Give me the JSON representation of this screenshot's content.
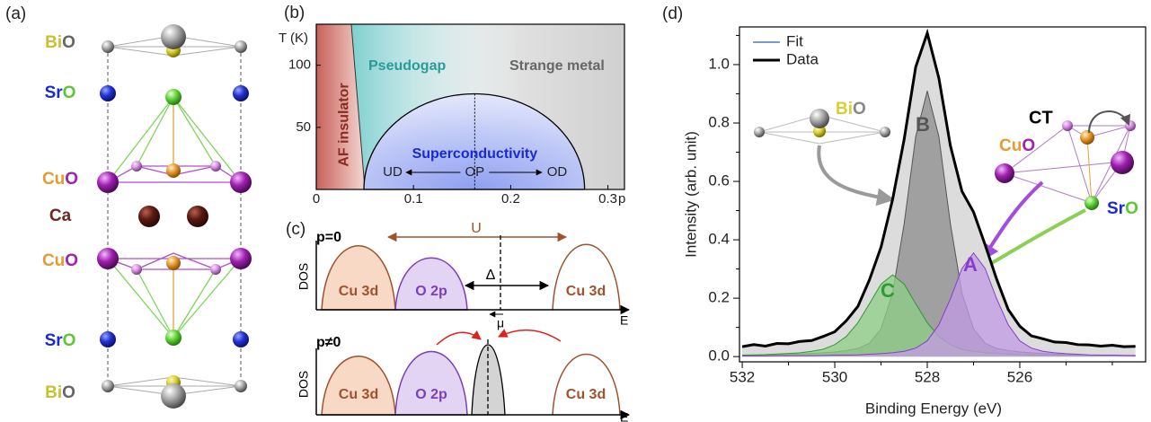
{
  "panels": {
    "a": {
      "label": "(a)",
      "layers": [
        {
          "cation": "Bi",
          "anion": "O"
        },
        {
          "cation": "Sr",
          "anion": "O"
        },
        {
          "cation": "Cu",
          "anion": "O"
        },
        {
          "cation": "Ca"
        },
        {
          "cation": "Cu",
          "anion": "O"
        },
        {
          "cation": "Sr",
          "anion": "O"
        },
        {
          "cation": "Bi",
          "anion": "O"
        }
      ]
    },
    "c": {
      "label": "(c)",
      "top": {
        "title": "p=0",
        "u": "U",
        "dos": "DOS",
        "cu_left": "Cu 3d",
        "o2p": "O 2p",
        "gap": "Δ",
        "cu_right": "Cu 3d",
        "mu": "μ",
        "e": "E"
      },
      "bottom": {
        "title": "p≠0",
        "dos": "DOS",
        "cu_left": "Cu 3d",
        "o2p": "O 2p",
        "cu_right": "Cu 3d",
        "e": "E"
      }
    }
  },
  "chart_data": [
    {
      "type": "phase_diagram",
      "label": "(b)",
      "ylabel": "T (K)",
      "xlabel": "p",
      "xlim": [
        0,
        0.317
      ],
      "ylim": [
        0,
        133
      ],
      "xticks": [
        0,
        0.1,
        0.2,
        0.3
      ],
      "yticks": [
        50,
        100
      ],
      "af_boundary": {
        "p": [
          0.036,
          0.05
        ],
        "T": [
          133,
          0
        ]
      },
      "dome": {
        "p": [
          0.049,
          0.276
        ],
        "tc_max": 77,
        "p_opt": 0.163
      },
      "regions": {
        "af": "AF insulator",
        "pseudogap": "Pseudogap",
        "strange_metal": "Strange metal",
        "sc": "Superconductivity"
      },
      "doping": {
        "ud": "UD",
        "op": "OP",
        "od": "OD"
      }
    },
    {
      "type": "line",
      "label": "(d)",
      "xlabel": "Binding Energy (eV)",
      "ylabel": "Intensity (arb. unit)",
      "xlim": [
        532.06,
        523.28
      ],
      "ylim": [
        -0.018,
        1.129
      ],
      "xticks": [
        532,
        530,
        528,
        526
      ],
      "xminorticks": [
        531,
        529,
        527,
        525,
        524
      ],
      "yticks": [
        {
          "value": 0,
          "label": "0.0"
        },
        0.2,
        0.4,
        0.6,
        0.8,
        {
          "value": 1,
          "label": "1.0"
        }
      ],
      "yminorticks": [
        0.1,
        0.3,
        0.5,
        0.7,
        0.9,
        1.1
      ],
      "legend": "upper left",
      "x": [
        532,
        531.75,
        531.5,
        531.25,
        531,
        530.75,
        530.5,
        530.25,
        530,
        529.75,
        529.5,
        529.25,
        529,
        528.75,
        528.5,
        528.25,
        528,
        527.75,
        527.5,
        527.25,
        527,
        526.75,
        526.5,
        526.25,
        526,
        525.75,
        525.5,
        525.25,
        525,
        524.75,
        524.5,
        524.25,
        524,
        523.75,
        523.5
      ],
      "series": [
        {
          "name": "Fit",
          "style": "line",
          "color": "#4a7bb7",
          "fill": "#dcdcdc",
          "values": [
            0.036,
            0.038,
            0.039,
            0.043,
            0.046,
            0.05,
            0.057,
            0.067,
            0.087,
            0.12,
            0.175,
            0.26,
            0.378,
            0.535,
            0.746,
            0.989,
            1.105,
            0.957,
            0.719,
            0.569,
            0.493,
            0.386,
            0.262,
            0.164,
            0.102,
            0.073,
            0.059,
            0.052,
            0.046,
            0.043,
            0.039,
            0.038,
            0.037,
            0.036,
            0.034
          ]
        },
        {
          "name": "B",
          "style": "area",
          "color": "#555555",
          "fill": "#8c8c8c",
          "values": [
            0.004,
            0.005,
            0.005,
            0.006,
            0.007,
            0.009,
            0.011,
            0.013,
            0.016,
            0.021,
            0.028,
            0.046,
            0.095,
            0.217,
            0.455,
            0.754,
            0.91,
            0.754,
            0.455,
            0.217,
            0.095,
            0.046,
            0.028,
            0.021,
            0.016,
            0.013,
            0.011,
            0.009,
            0.007,
            0.006,
            0.005,
            0.005,
            0.004,
            0.004,
            0.004
          ]
        },
        {
          "name": "C",
          "style": "area",
          "color": "#2f9a2f",
          "fill": "#8fcf86",
          "values": [
            0.005,
            0.006,
            0.007,
            0.009,
            0.011,
            0.013,
            0.018,
            0.025,
            0.041,
            0.069,
            0.116,
            0.181,
            0.248,
            0.28,
            0.248,
            0.181,
            0.116,
            0.069,
            0.041,
            0.025,
            0.018,
            0.013,
            0.011,
            0.009,
            0.007,
            0.006,
            0.005,
            0.005,
            0.004,
            0.004,
            0.003,
            0.003,
            0.003,
            0.003,
            0.002
          ]
        },
        {
          "name": "A",
          "style": "area",
          "color": "#8a3dc8",
          "fill": "#c39be6",
          "values": [
            0.002,
            0.002,
            0.002,
            0.003,
            0.003,
            0.003,
            0.003,
            0.004,
            0.005,
            0.005,
            0.006,
            0.008,
            0.01,
            0.013,
            0.018,
            0.029,
            0.054,
            0.109,
            0.198,
            0.302,
            0.355,
            0.302,
            0.198,
            0.109,
            0.054,
            0.029,
            0.018,
            0.013,
            0.01,
            0.008,
            0.006,
            0.005,
            0.005,
            0.004,
            0.003
          ]
        },
        {
          "name": "Data",
          "style": "line",
          "color": "#000000",
          "values": [
            0.034,
            0.041,
            0.036,
            0.045,
            0.044,
            0.052,
            0.055,
            0.069,
            0.085,
            0.123,
            0.172,
            0.263,
            0.375,
            0.538,
            0.744,
            0.992,
            1.108,
            0.954,
            0.722,
            0.566,
            0.495,
            0.383,
            0.265,
            0.161,
            0.104,
            0.071,
            0.061,
            0.05,
            0.048,
            0.041,
            0.04,
            0.036,
            0.039,
            0.034,
            0.035
          ]
        }
      ],
      "insets": {
        "bio": {
          "cation": "Bi",
          "anion": "O"
        },
        "cuo": {
          "cation": "Cu",
          "anion": "O"
        },
        "sro": {
          "cation": "Sr",
          "anion": "O"
        },
        "ct": "CT"
      }
    }
  ]
}
